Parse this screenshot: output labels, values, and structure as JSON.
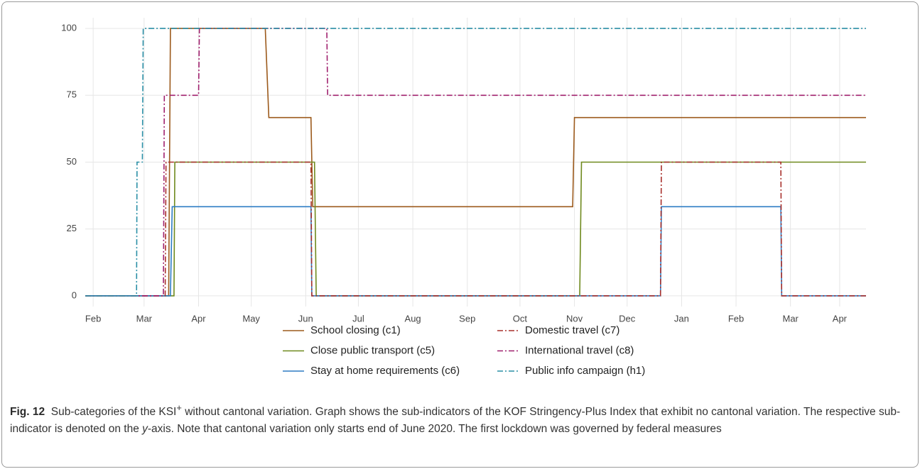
{
  "chart_data": {
    "type": "line",
    "xlim": [
      -4.5,
      440
    ],
    "ylim": [
      -4,
      104
    ],
    "xticks": [
      {
        "value": 0,
        "label": "Feb"
      },
      {
        "value": 29,
        "label": "Mar"
      },
      {
        "value": 60,
        "label": "Apr"
      },
      {
        "value": 90,
        "label": "May"
      },
      {
        "value": 121,
        "label": "Jun"
      },
      {
        "value": 151,
        "label": "Jul"
      },
      {
        "value": 182,
        "label": "Aug"
      },
      {
        "value": 213,
        "label": "Sep"
      },
      {
        "value": 243,
        "label": "Oct"
      },
      {
        "value": 274,
        "label": "Nov"
      },
      {
        "value": 304,
        "label": "Dec"
      },
      {
        "value": 335,
        "label": "Jan"
      },
      {
        "value": 366,
        "label": "Feb"
      },
      {
        "value": 397,
        "label": "Mar"
      },
      {
        "value": 425,
        "label": "Apr"
      }
    ],
    "yticks": [
      0,
      25,
      50,
      75,
      100
    ],
    "grid": true,
    "legend": "bottom",
    "series": [
      {
        "name": "School closing (c1)",
        "color": "#9c5a1c",
        "line_style": "solid",
        "x": [
          -4.5,
          43,
          44,
          98,
          100,
          124,
          125,
          273,
          274,
          440
        ],
        "values": [
          0,
          0,
          100,
          100,
          66.67,
          66.67,
          33.33,
          33.33,
          66.67,
          66.67
        ]
      },
      {
        "name": "Close public transport (c5)",
        "color": "#6f8a1e",
        "line_style": "solid",
        "x": [
          -4.5,
          46,
          46.5,
          126,
          127,
          277,
          278,
          440
        ],
        "values": [
          0,
          0,
          50,
          50,
          0,
          0,
          50,
          50
        ]
      },
      {
        "name": "Stay at home requirements (c6)",
        "color": "#2e7cc4",
        "line_style": "solid",
        "x": [
          -4.5,
          44,
          45,
          124,
          124.5,
          323,
          323.5,
          391.5,
          392,
          440
        ],
        "values": [
          0,
          0,
          33.33,
          33.33,
          0,
          0,
          33.33,
          33.33,
          0,
          0
        ]
      },
      {
        "name": "Domestic travel (c7)",
        "color": "#a8302c",
        "line_style": "dashdot",
        "x": [
          -4.5,
          41,
          41.5,
          124,
          124.5,
          323,
          323.5,
          391.5,
          392,
          440
        ],
        "values": [
          0,
          0,
          50,
          50,
          0,
          0,
          50,
          50,
          0,
          0
        ]
      },
      {
        "name": "International travel (c8)",
        "color": "#a0206e",
        "line_style": "dashdot",
        "x": [
          -4.5,
          40,
          40.5,
          60,
          60.5,
          133,
          133.5,
          440
        ],
        "values": [
          0,
          0,
          75,
          75,
          100,
          100,
          75,
          75
        ]
      },
      {
        "name": "Public info campaign (h1)",
        "color": "#2a8fa6",
        "line_style": "dashdot",
        "x": [
          -4.5,
          24.7,
          25,
          28,
          28.5,
          440
        ],
        "values": [
          0,
          0,
          50,
          50,
          100,
          100
        ]
      }
    ]
  },
  "caption": {
    "label": "Fig. 12",
    "parts": [
      "Sub-categories of the KSI",
      "+",
      " without cantonal variation. Graph shows the sub-indicators of the KOF Stringency-Plus Index that exhibit no cantonal variation. The respective sub-indicator is denoted on the ",
      "y",
      "-axis. Note that cantonal variation only starts end of June 2020. The first lockdown was governed by federal measures"
    ]
  }
}
